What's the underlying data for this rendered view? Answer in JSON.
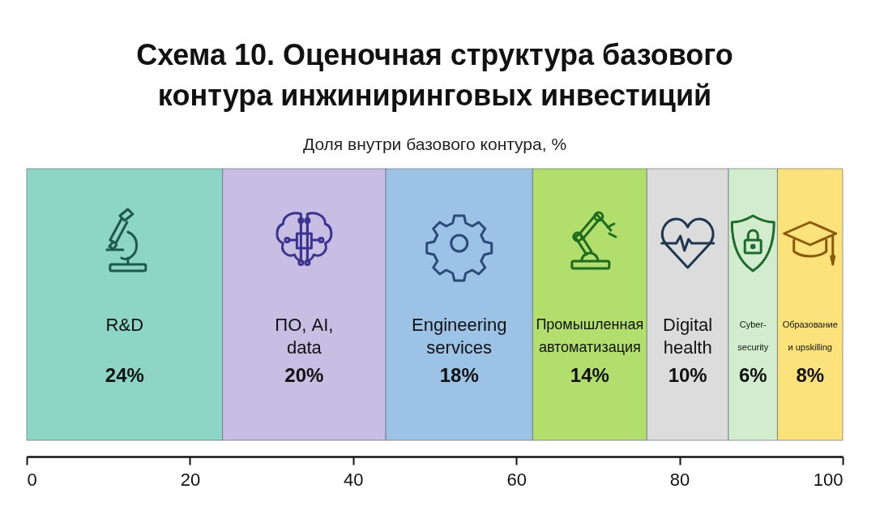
{
  "chart_data": {
    "type": "bar",
    "title": "Схема 10. Оценочная структура базового контура инжиниринговых инвестиций",
    "subtitle": "Доля внутри базового контура, %",
    "orientation": "horizontal",
    "stacked": true,
    "categories": [
      null
    ],
    "xlim": [
      0,
      100
    ],
    "xticks": [
      0,
      20,
      40,
      60,
      80,
      100
    ],
    "grid": false,
    "legend": false,
    "series": [
      {
        "name": "R&D",
        "color": "#8dd5c4",
        "values": [
          24
        ],
        "value_labels": [
          "24%"
        ]
      },
      {
        "name": "ПО, AI, data",
        "color": "#c8bde3",
        "values": [
          20
        ],
        "value_labels": [
          "20%"
        ]
      },
      {
        "name": "Engineering services",
        "color": "#9cc3e6",
        "values": [
          18
        ],
        "value_labels": [
          "18%"
        ]
      },
      {
        "name": "Промышленная автоматизация",
        "color": "#b1de6c",
        "values": [
          14
        ],
        "value_labels": [
          "14%"
        ]
      },
      {
        "name": "Digital health",
        "color": "#dcdcdc",
        "values": [
          10
        ],
        "value_labels": [
          "10%"
        ]
      },
      {
        "name": "Cyber-security",
        "color": "#d2edce",
        "values": [
          6
        ],
        "value_labels": [
          "6%"
        ]
      },
      {
        "name": "Образование и upskilling",
        "color": "#fbe27a",
        "values": [
          8
        ],
        "value_labels": [
          "8%"
        ]
      }
    ]
  }
}
